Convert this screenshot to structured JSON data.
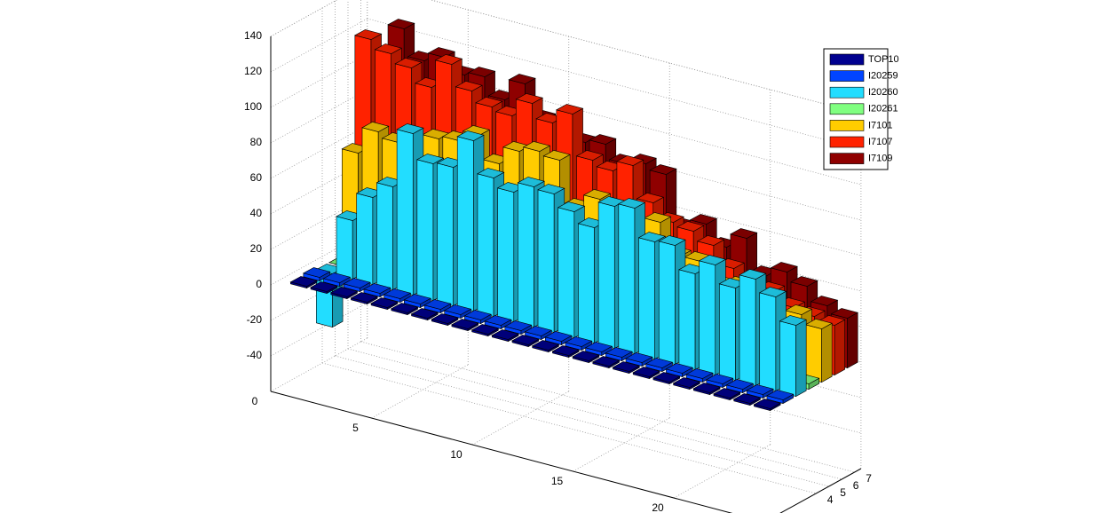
{
  "chart_data": {
    "type": "bar3",
    "xlim": [
      0,
      24.5
    ],
    "ylim": [
      0,
      7.5
    ],
    "zlim": [
      -60,
      140
    ],
    "xticks": [
      0,
      5,
      10,
      15,
      20
    ],
    "yticks": [
      4,
      5,
      6,
      7
    ],
    "zticks": [
      -40,
      -20,
      0,
      20,
      40,
      60,
      80,
      100,
      120,
      140
    ],
    "grid": true,
    "legend": "upper right",
    "categories": [
      1,
      2,
      3,
      4,
      5,
      6,
      7,
      8,
      9,
      10,
      11,
      12,
      13,
      14,
      15,
      16,
      17,
      18,
      19,
      20,
      21,
      22,
      23,
      24
    ],
    "series": [
      {
        "name": "TOP10",
        "color": "#00008f",
        "values": [
          1,
          1,
          1,
          1,
          1,
          1,
          1,
          1,
          1,
          1,
          1,
          1,
          1,
          1,
          1,
          1,
          1,
          1,
          1,
          1,
          1,
          1,
          1,
          1
        ]
      },
      {
        "name": "I20259",
        "color": "#0044ff",
        "values": [
          2,
          2,
          2,
          2,
          2,
          2,
          2,
          2,
          2,
          2,
          2,
          2,
          2,
          2,
          2,
          2,
          2,
          2,
          2,
          2,
          2,
          2,
          2,
          2
        ]
      },
      {
        "name": "I20260",
        "color": "#22ddff",
        "values": [
          -30,
          33,
          49,
          58,
          91,
          77,
          78,
          96,
          78,
          73,
          79,
          78,
          71,
          65,
          80,
          82,
          66,
          67,
          54,
          62,
          52,
          60,
          53,
          40
        ]
      },
      {
        "name": "I20261",
        "color": "#80ff80",
        "values": [
          0,
          0,
          0,
          0,
          0,
          0,
          0,
          0,
          0,
          0,
          0,
          0,
          0,
          0,
          0,
          0,
          0,
          0,
          0,
          0,
          0,
          0,
          2,
          3
        ]
      },
      {
        "name": "I7101",
        "color": "#ffcc00",
        "values": [
          60,
          75,
          72,
          70,
          80,
          82,
          88,
          75,
          85,
          88,
          86,
          62,
          70,
          60,
          55,
          66,
          50,
          50,
          40,
          42,
          40,
          30,
          35,
          30
        ]
      },
      {
        "name": "I7107",
        "color": "#ff2200",
        "values": [
          120,
          115,
          110,
          102,
          118,
          106,
          100,
          98,
          108,
          100,
          108,
          85,
          82,
          88,
          70,
          62,
          60,
          55,
          45,
          40,
          38,
          32,
          30,
          28
        ]
      },
      {
        "name": "I7109",
        "color": "#8f0000",
        "values": [
          95,
          125,
          110,
          115,
          108,
          110,
          100,
          112,
          95,
          92,
          88,
          90,
          82,
          85,
          82,
          55,
          60,
          50,
          58,
          40,
          45,
          40,
          32,
          28
        ]
      }
    ]
  }
}
